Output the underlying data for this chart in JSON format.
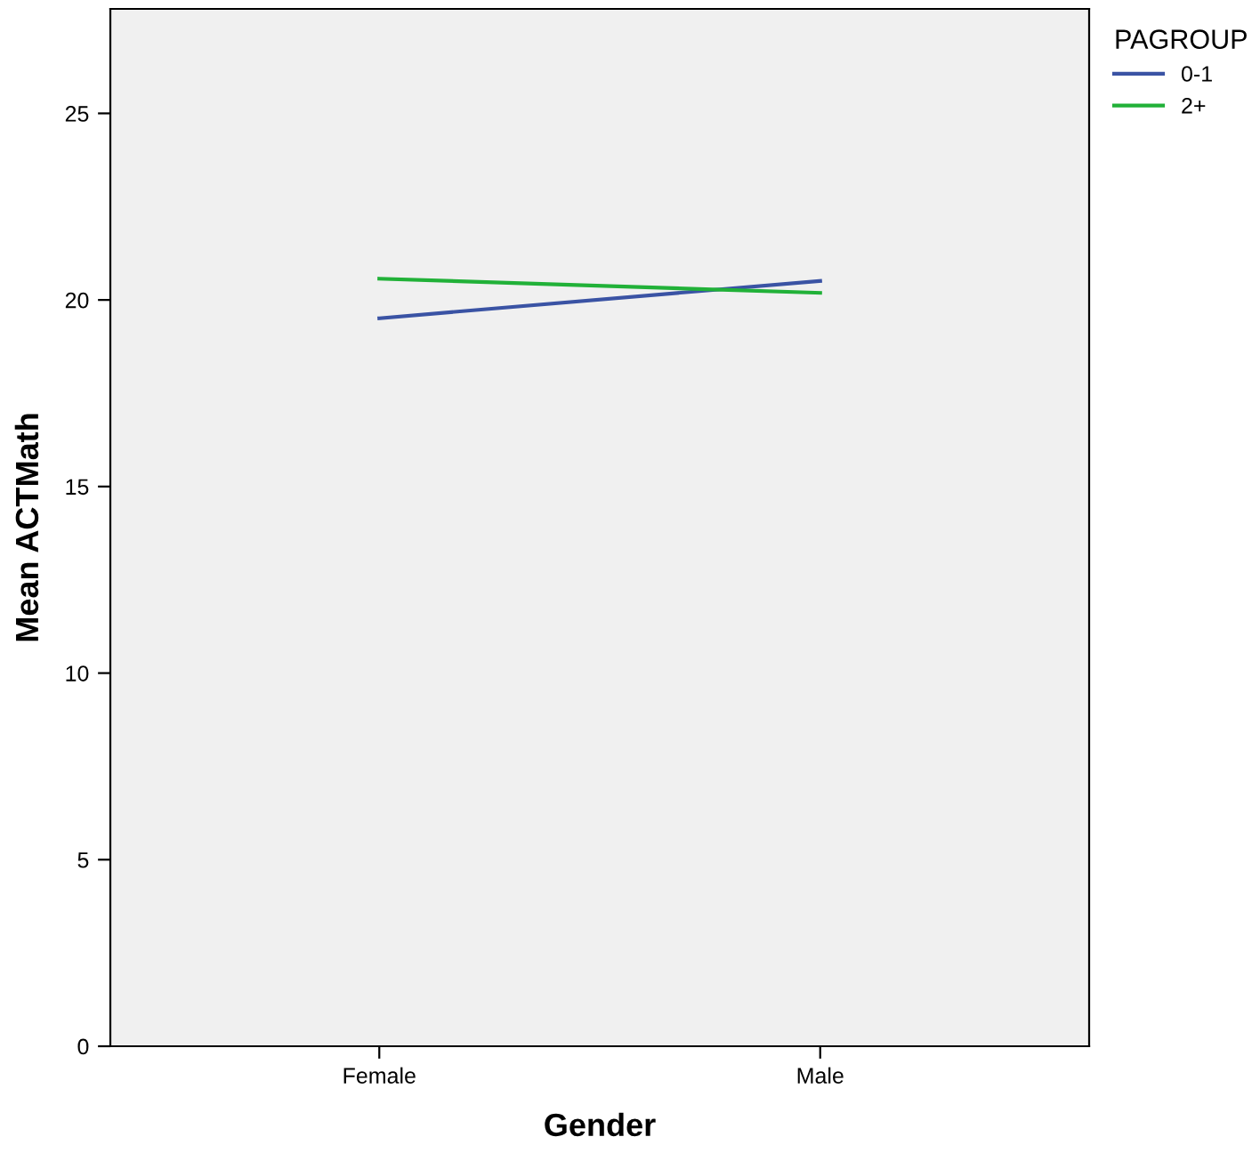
{
  "chart_data": {
    "type": "line",
    "xlabel": "Gender",
    "ylabel": "Mean ACTMath",
    "legend_title": "PAGROUP",
    "categories": [
      "Female",
      "Male"
    ],
    "series": [
      {
        "name": "0-1",
        "color": "#3a53a4",
        "values": [
          19.51,
          20.51
        ]
      },
      {
        "name": "2+",
        "color": "#21b138",
        "values": [
          20.57,
          20.19
        ]
      }
    ],
    "ylim": [
      0,
      27.8
    ],
    "yticks": [
      0,
      5,
      10,
      15,
      20,
      25
    ],
    "grid": false,
    "legend": "top right",
    "marker": "none",
    "line_style": "solid"
  }
}
